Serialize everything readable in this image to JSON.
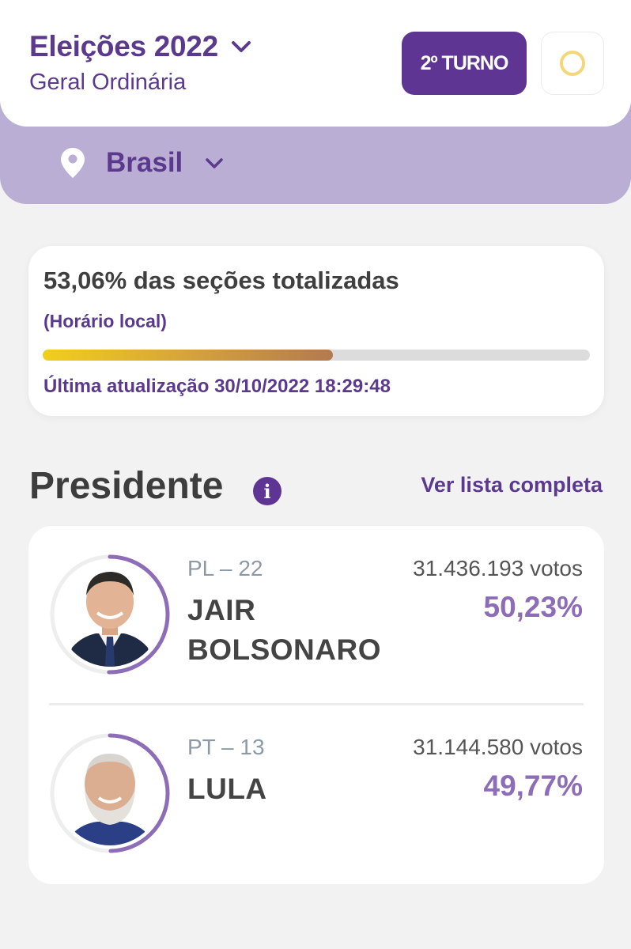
{
  "header": {
    "title": "Eleições 2022",
    "subtitle": "Geral Ordinária",
    "turno_button": "2º TURNO",
    "theme_toggle": "theme-circle"
  },
  "location": {
    "label": "Brasil"
  },
  "status": {
    "percent_text": "53,06% das seções totalizadas",
    "note": "(Horário local)",
    "progress_percent": 53.06,
    "last_update": "Última atualização 30/10/2022 18:29:48"
  },
  "section": {
    "title": "Presidente",
    "info_icon": "i",
    "link": "Ver lista completa"
  },
  "candidates": [
    {
      "party": "PL – 22",
      "name_line1": "JAIR",
      "name_line2": "BOLSONARO",
      "votes": "31.436.193 votos",
      "percent": "50,23%",
      "percent_value": 50.23
    },
    {
      "party": "PT – 13",
      "name_line1": "LULA",
      "name_line2": "",
      "votes": "31.144.580 votos",
      "percent": "49,77%",
      "percent_value": 49.77
    }
  ],
  "colors": {
    "brand": "#5e3592",
    "accent_light": "#bbaed4",
    "percent": "#8e6db8",
    "progress_start": "#f0cf1c",
    "progress_end": "#b27a50"
  }
}
